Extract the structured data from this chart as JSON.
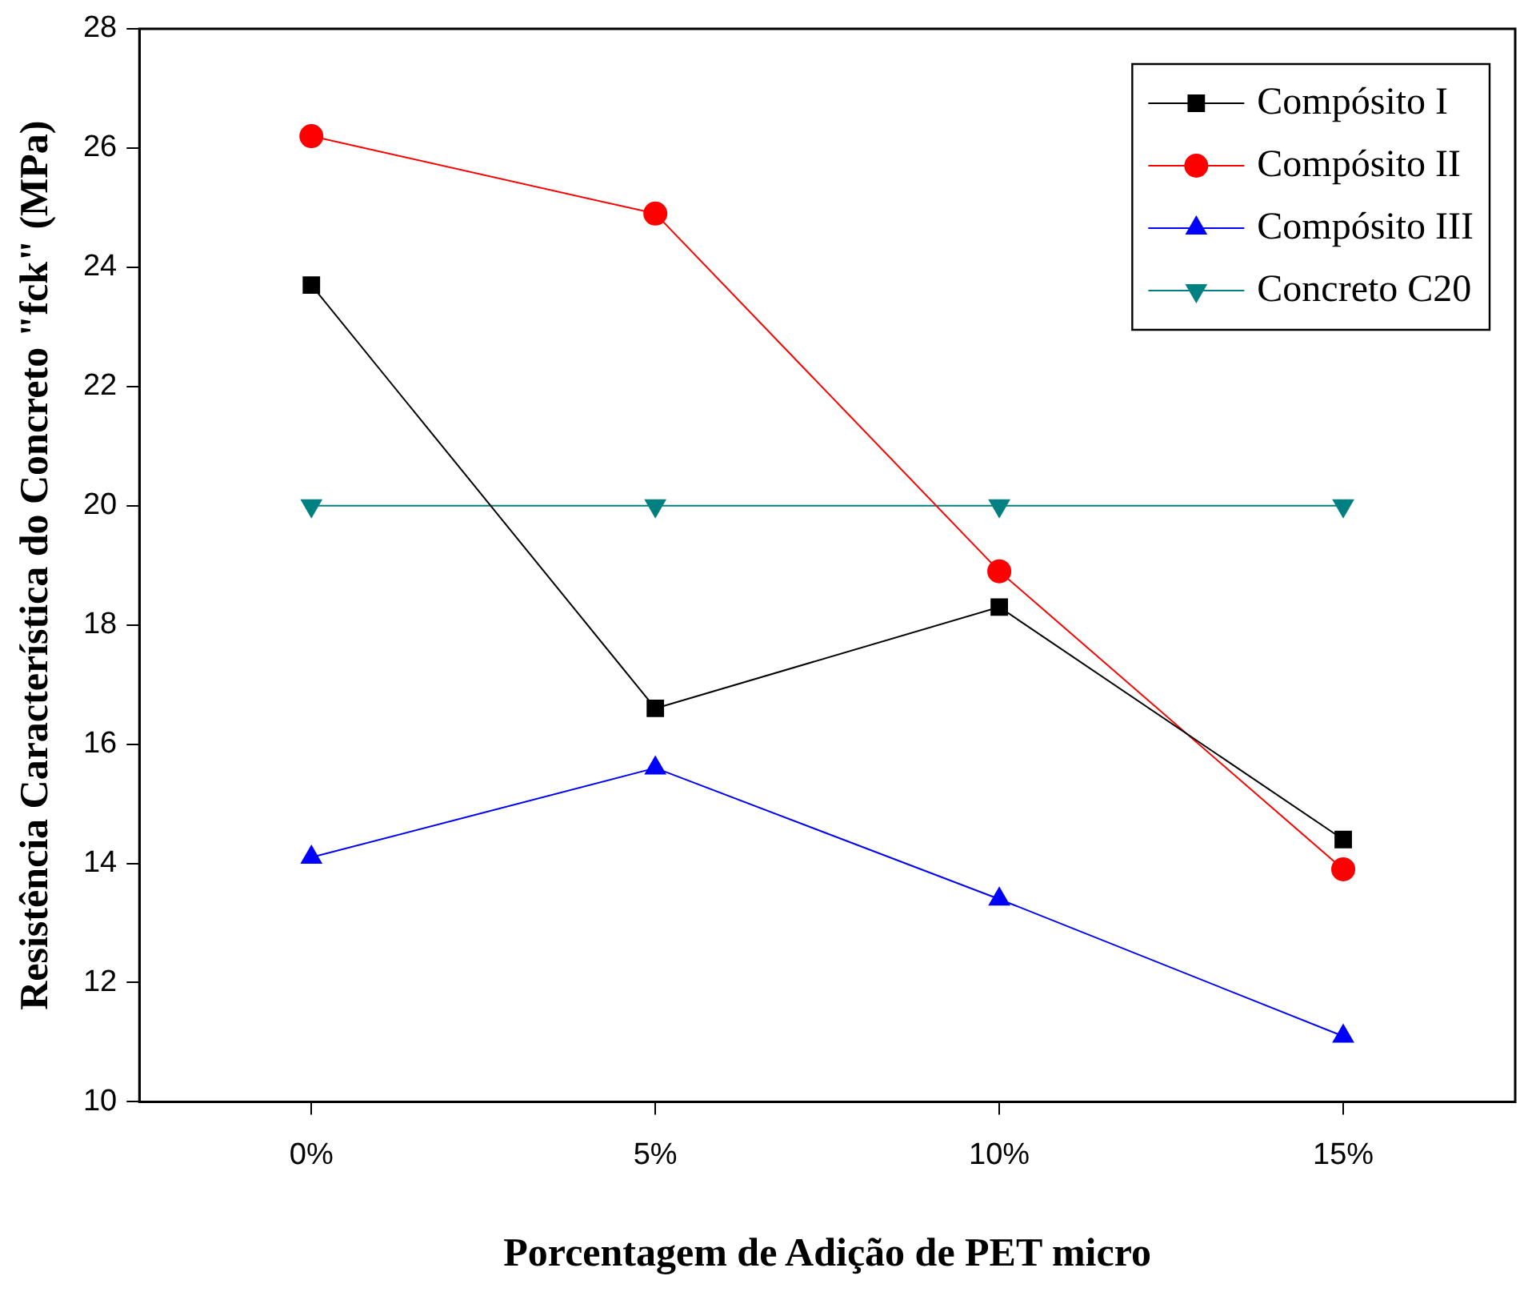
{
  "chart_data": {
    "type": "line",
    "xlabel": "Porcentagem de Adição de PET micro",
    "ylabel": "Resistência Característica do Concreto \"fck\" (MPa)",
    "categories": [
      "0%",
      "5%",
      "10%",
      "15%"
    ],
    "series": [
      {
        "name": "Compósito I",
        "color": "#000000",
        "marker": "square",
        "values": [
          23.7,
          16.6,
          18.3,
          14.4
        ]
      },
      {
        "name": "Compósito II",
        "color": "#ff0000",
        "marker": "circle",
        "values": [
          26.2,
          24.9,
          18.9,
          13.9
        ]
      },
      {
        "name": "Compósito III",
        "color": "#0000ff",
        "marker": "triangle",
        "values": [
          14.1,
          15.6,
          13.4,
          11.1
        ]
      },
      {
        "name": "Concreto C20",
        "color": "#008080",
        "marker": "triangle-down",
        "values": [
          20,
          20,
          20,
          20
        ]
      }
    ],
    "ylim": [
      10,
      28
    ],
    "yticks": [
      10,
      12,
      14,
      16,
      18,
      20,
      22,
      24,
      26,
      28
    ],
    "grid": false,
    "legend": "top right",
    "line_style": "solid"
  }
}
